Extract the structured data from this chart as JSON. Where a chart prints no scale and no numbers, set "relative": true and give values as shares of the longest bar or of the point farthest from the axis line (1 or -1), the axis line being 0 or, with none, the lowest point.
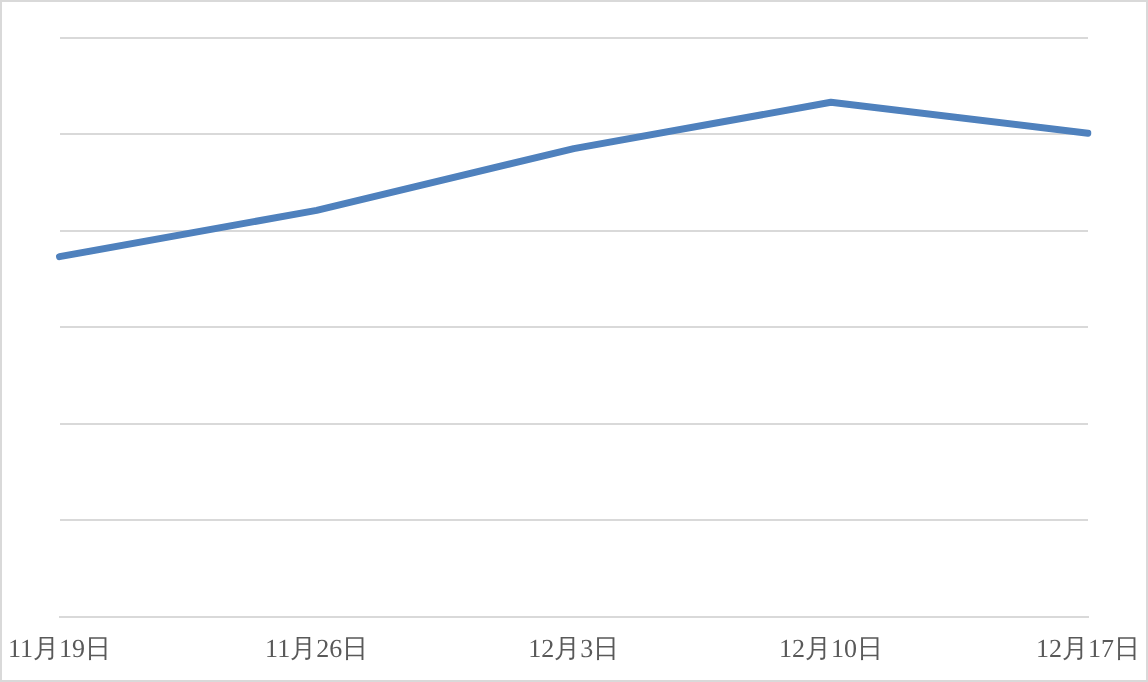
{
  "chart_data": {
    "type": "line",
    "relative": true,
    "categories": [
      "11月19日",
      "11月26日",
      "12月3日",
      "12月10日",
      "12月17日"
    ],
    "series": [
      {
        "color": "#4f81bd",
        "values": [
          0.7,
          0.79,
          0.91,
          1,
          0.94
        ]
      }
    ],
    "grid": "y",
    "legend": false,
    "marker": "none",
    "line_style": "solid"
  }
}
